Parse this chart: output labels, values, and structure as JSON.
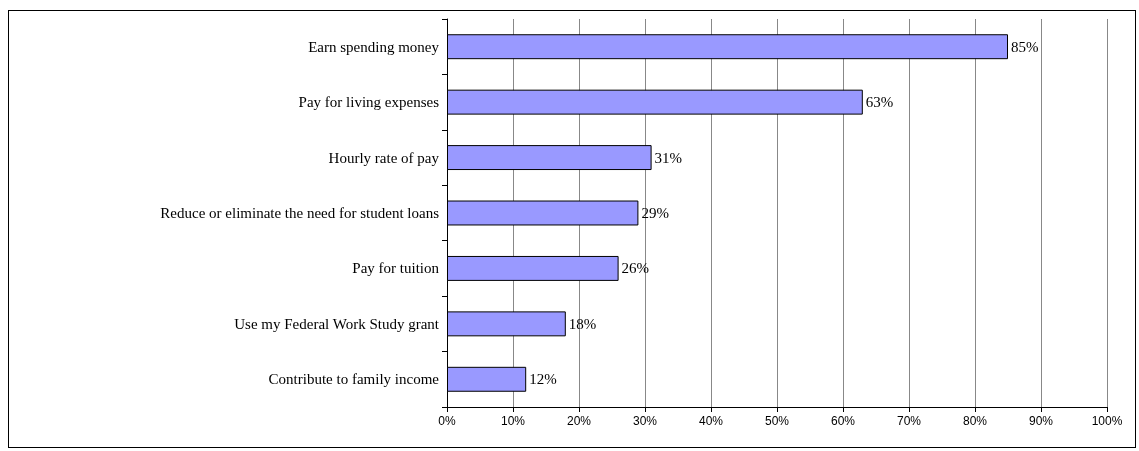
{
  "chart_data": {
    "type": "bar",
    "orientation": "horizontal",
    "categories": [
      "Earn spending money",
      "Pay for living expenses",
      "Hourly rate of pay",
      "Reduce or eliminate the need for student loans",
      "Pay for tuition",
      "Use my Federal Work Study grant",
      "Contribute to family income"
    ],
    "values": [
      85,
      63,
      31,
      29,
      26,
      18,
      12
    ],
    "value_labels": [
      "85%",
      "63%",
      "31%",
      "29%",
      "26%",
      "18%",
      "12%"
    ],
    "color": "#9999ff",
    "xlim": [
      0,
      100
    ],
    "xticks": [
      {
        "value": 0,
        "label": "0%"
      },
      {
        "value": 10,
        "label": "10%"
      },
      {
        "value": 20,
        "label": "20%"
      },
      {
        "value": 30,
        "label": "30%"
      },
      {
        "value": 40,
        "label": "40%"
      },
      {
        "value": 50,
        "label": "50%"
      },
      {
        "value": 60,
        "label": "60%"
      },
      {
        "value": 70,
        "label": "70%"
      },
      {
        "value": 80,
        "label": "80%"
      },
      {
        "value": 90,
        "label": "90%"
      },
      {
        "value": 100,
        "label": "100%"
      }
    ],
    "grid": "x"
  }
}
